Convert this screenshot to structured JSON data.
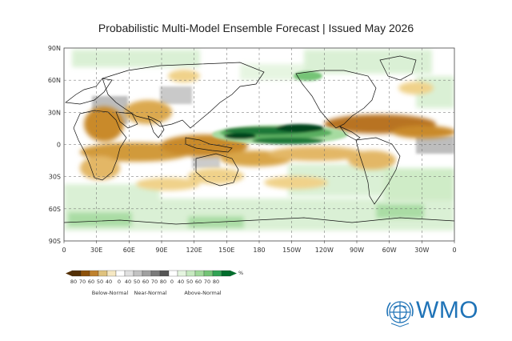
{
  "title": "Probabilistic Multi-Model Ensemble Forecast | Issued May 2026",
  "map": {
    "lat_ticks": [
      "90N",
      "60N",
      "30N",
      "0",
      "30S",
      "60S",
      "90S"
    ],
    "lon_ticks": [
      "0",
      "30E",
      "60E",
      "90E",
      "120E",
      "150E",
      "180",
      "150W",
      "120W",
      "90W",
      "60W",
      "30W",
      "0"
    ]
  },
  "legend": {
    "unit": "%",
    "below": {
      "label": "Below-Normal",
      "ticks": [
        "80",
        "70",
        "60",
        "50",
        "40"
      ],
      "colors": [
        "#543005",
        "#8c510a",
        "#bf812d",
        "#dfc27d",
        "#f6e8c3"
      ]
    },
    "near": {
      "label": "Near-Normal",
      "ticks": [
        "0",
        "40",
        "50",
        "60",
        "70",
        "80"
      ],
      "colors": [
        "#ffffff",
        "#e0e0e0",
        "#c2c2c2",
        "#a0a0a0",
        "#7a7a7a",
        "#555555"
      ]
    },
    "above": {
      "label": "Above-Normal",
      "ticks": [
        "0",
        "40",
        "50",
        "60",
        "70",
        "80"
      ],
      "colors": [
        "#ffffff",
        "#e5f5e0",
        "#c7e9c0",
        "#a1d99b",
        "#74c476",
        "#31a354",
        "#006d2c"
      ]
    }
  },
  "colors": {
    "below_strong": "#a6611a",
    "below_mid": "#d19a3a",
    "below_light": "#f0d28a",
    "near": "#bdbdbd",
    "above_light": "#d9f0d3",
    "above_mid": "#a6dba0",
    "above_strong": "#1b7837",
    "above_darkest": "#00441b",
    "land_outline": "#111111"
  },
  "logo": {
    "text": "WMO",
    "icon": "wmo-emblem-icon",
    "color": "#1f73b7"
  }
}
